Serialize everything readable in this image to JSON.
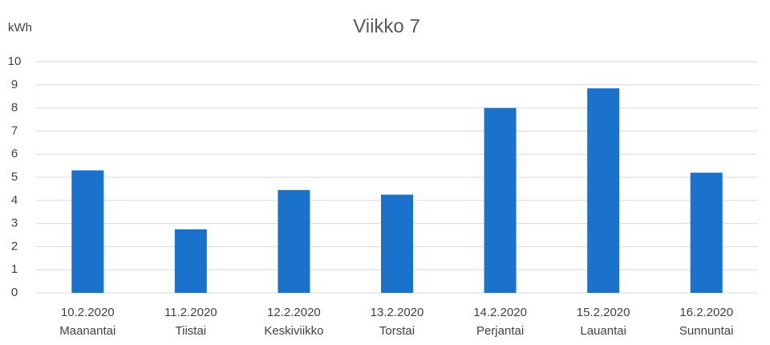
{
  "chart_data": {
    "type": "bar",
    "title": "Viikko 7",
    "y_label": "kWh",
    "categories": [
      "10.2.2020",
      "11.2.2020",
      "12.2.2020",
      "13.2.2020",
      "14.2.2020",
      "15.2.2020",
      "16.2.2020"
    ],
    "weekdays": [
      "Maanantai",
      "Tiistai",
      "Keskiviikko",
      "Torstai",
      "Perjantai",
      "Lauantai",
      "Sunnuntai"
    ],
    "values": [
      5.3,
      2.75,
      4.45,
      4.25,
      8.0,
      8.85,
      5.2
    ],
    "color": "#1a72cc",
    "ylim": [
      0,
      10
    ],
    "yticks": [
      0,
      1,
      2,
      3,
      4,
      5,
      6,
      7,
      8,
      9,
      10
    ],
    "grid": true
  }
}
